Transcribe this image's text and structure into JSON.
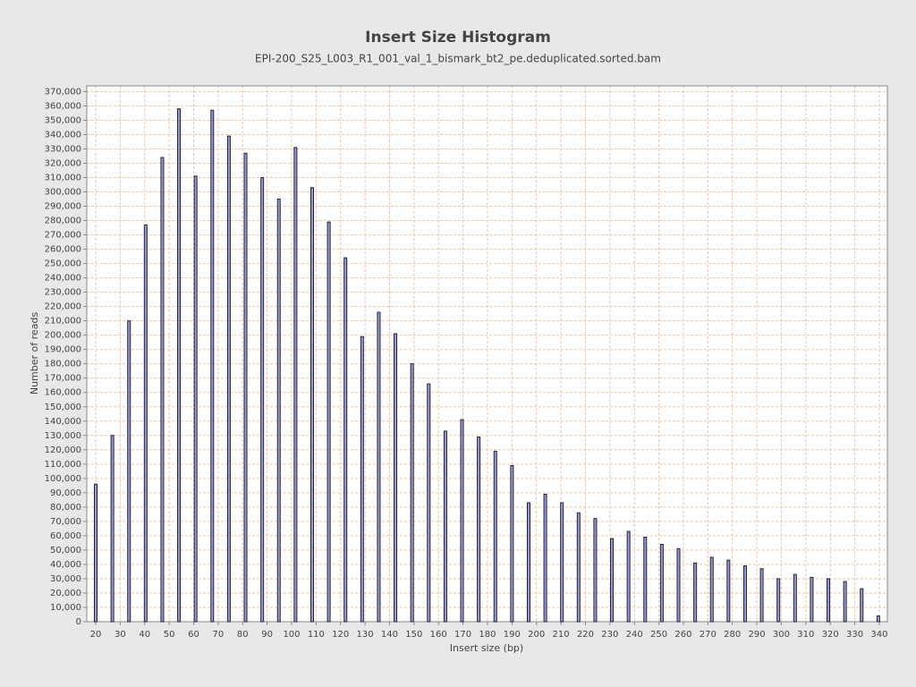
{
  "chart_data": {
    "type": "bar",
    "title": "Insert Size Histogram",
    "subtitle": "EPI-200_S25_L003_R1_001_val_1_bismark_bt2_pe.deduplicated.sorted.bam",
    "x_label": "Insert size (bp)",
    "y_label": "Number of reads",
    "x": [
      20,
      26.8,
      33.6,
      40.4,
      47.2,
      54,
      60.8,
      67.6,
      74.4,
      81.2,
      88,
      94.8,
      101.6,
      108.4,
      115.2,
      122,
      128.8,
      135.6,
      142.4,
      149.2,
      156,
      162.8,
      169.6,
      176.4,
      183.2,
      190,
      196.8,
      203.6,
      210.4,
      217.2,
      224,
      230.8,
      237.6,
      244.4,
      251.2,
      258,
      264.8,
      271.6,
      278.4,
      285.2,
      292,
      298.8,
      305.6,
      312.4,
      319.2,
      326,
      332.8,
      339.6
    ],
    "values": [
      96000,
      130000,
      210000,
      277000,
      324000,
      358000,
      311000,
      357000,
      339000,
      327000,
      310000,
      295000,
      331000,
      303000,
      279000,
      254000,
      199000,
      216000,
      201000,
      180000,
      166000,
      133000,
      141000,
      129000,
      119000,
      109000,
      83000,
      89000,
      83000,
      76000,
      72000,
      58000,
      63000,
      59000,
      54000,
      51000,
      41000,
      45000,
      43000,
      39000,
      37000,
      30000,
      33000,
      31000,
      30000,
      28000,
      23000,
      4000
    ],
    "color": "#9999dd",
    "xlim": [
      16.35,
      343.3
    ],
    "ylim": [
      0,
      374000
    ],
    "xticks": [
      20,
      30,
      40,
      50,
      60,
      70,
      80,
      90,
      100,
      110,
      120,
      130,
      140,
      150,
      160,
      170,
      180,
      190,
      200,
      210,
      220,
      230,
      240,
      250,
      260,
      270,
      280,
      290,
      300,
      310,
      320,
      330,
      340
    ],
    "yticks": [
      0,
      {
        "value": 10000,
        "label": "10,000"
      },
      {
        "value": 20000,
        "label": "20,000"
      },
      {
        "value": 30000,
        "label": "30,000"
      },
      {
        "value": 40000,
        "label": "40,000"
      },
      {
        "value": 50000,
        "label": "50,000"
      },
      {
        "value": 60000,
        "label": "60,000"
      },
      {
        "value": 70000,
        "label": "70,000"
      },
      {
        "value": 80000,
        "label": "80,000"
      },
      {
        "value": 90000,
        "label": "90,000"
      },
      {
        "value": 100000,
        "label": "100,000"
      },
      {
        "value": 110000,
        "label": "110,000"
      },
      {
        "value": 120000,
        "label": "120,000"
      },
      {
        "value": 130000,
        "label": "130,000"
      },
      {
        "value": 140000,
        "label": "140,000"
      },
      {
        "value": 150000,
        "label": "150,000"
      },
      {
        "value": 160000,
        "label": "160,000"
      },
      {
        "value": 170000,
        "label": "170,000"
      },
      {
        "value": 180000,
        "label": "180,000"
      },
      {
        "value": 190000,
        "label": "190,000"
      },
      {
        "value": 200000,
        "label": "200,000"
      },
      {
        "value": 210000,
        "label": "210,000"
      },
      {
        "value": 220000,
        "label": "220,000"
      },
      {
        "value": 230000,
        "label": "230,000"
      },
      {
        "value": 240000,
        "label": "240,000"
      },
      {
        "value": 250000,
        "label": "250,000"
      },
      {
        "value": 260000,
        "label": "260,000"
      },
      {
        "value": 270000,
        "label": "270,000"
      },
      {
        "value": 280000,
        "label": "280,000"
      },
      {
        "value": 290000,
        "label": "290,000"
      },
      {
        "value": 300000,
        "label": "300,000"
      },
      {
        "value": 310000,
        "label": "310,000"
      },
      {
        "value": 320000,
        "label": "320,000"
      },
      {
        "value": 330000,
        "label": "330,000"
      },
      {
        "value": 340000,
        "label": "340,000"
      },
      {
        "value": 350000,
        "label": "350,000"
      },
      {
        "value": 360000,
        "label": "360,000"
      },
      {
        "value": 370000,
        "label": "370,000"
      }
    ],
    "grid": true
  }
}
